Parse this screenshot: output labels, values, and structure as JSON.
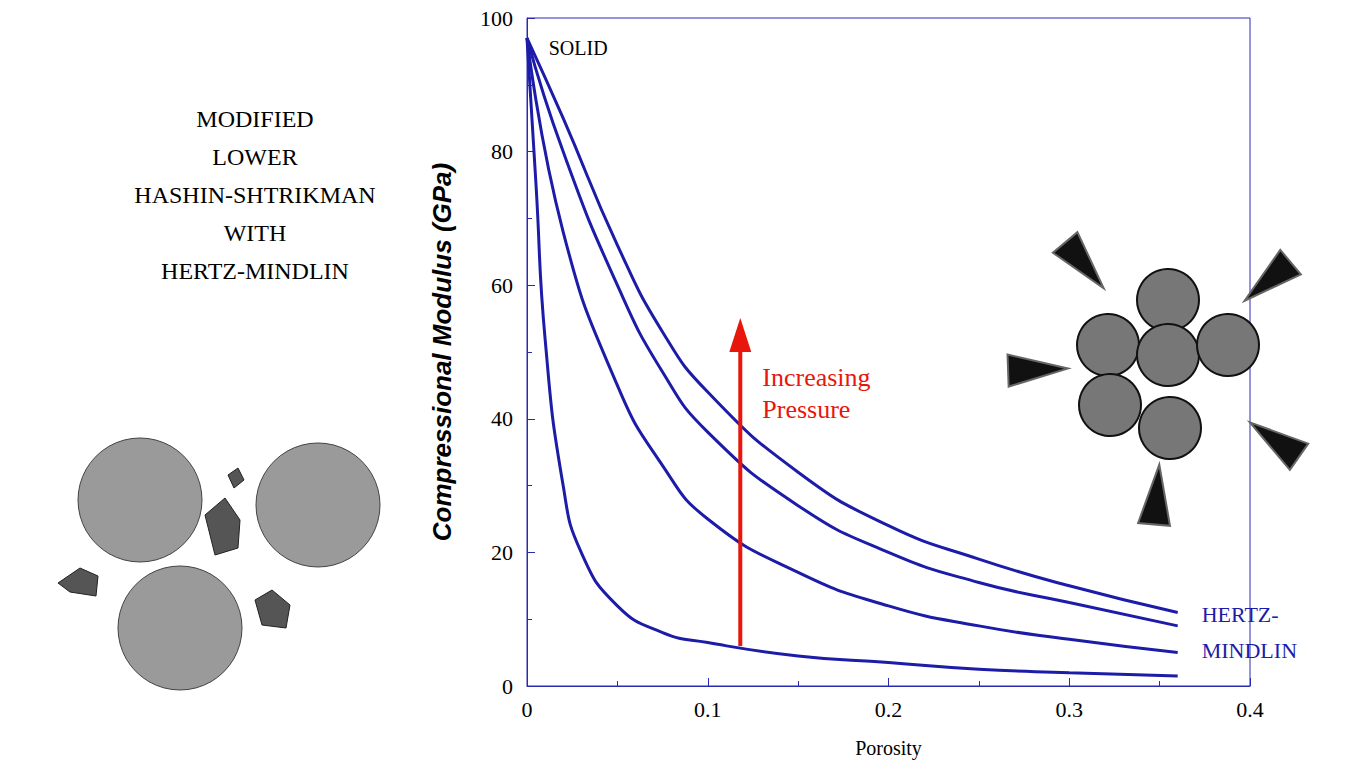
{
  "chart_data": {
    "type": "line",
    "title": "MODIFIED LOWER HASHIN-SHTRIKMAN WITH HERTZ-MINDLIN",
    "x_label": "Porosity",
    "y_label": "Compressional Modulus (GPa)",
    "annotations": [
      {
        "text": "SOLID"
      },
      {
        "text": "Increasing Pressure",
        "color": "#e8160c"
      },
      {
        "text": "HERTZ-MINDLIN",
        "color": "#1c1ca8"
      }
    ],
    "xlim": [
      0,
      0.4
    ],
    "ylim": [
      0,
      100
    ],
    "xticks": [
      0,
      0.1,
      0.2,
      0.3,
      0.4
    ],
    "yticks": [
      0,
      20,
      40,
      60,
      80,
      100
    ],
    "grid": false,
    "color": "#1c1ca8",
    "series": [
      {
        "x": [
          0,
          0.02,
          0.05,
          0.075,
          0.1,
          0.15,
          0.2,
          0.25,
          0.3,
          0.36
        ],
        "values": [
          97,
          85,
          66,
          53,
          44,
          32,
          24,
          19,
          15,
          11
        ]
      },
      {
        "x": [
          0,
          0.02,
          0.05,
          0.075,
          0.1,
          0.15,
          0.2,
          0.25,
          0.3,
          0.36
        ],
        "values": [
          97,
          80,
          60,
          47,
          38,
          27,
          20,
          15.5,
          12.5,
          9
        ]
      },
      {
        "x": [
          0,
          0.02,
          0.05,
          0.075,
          0.1,
          0.15,
          0.2,
          0.25,
          0.3,
          0.36
        ],
        "values": [
          97,
          68,
          45,
          33,
          25,
          17,
          12,
          9,
          7,
          5
        ]
      },
      {
        "x": [
          0,
          0.005,
          0.01,
          0.02,
          0.03,
          0.05,
          0.075,
          0.1,
          0.15,
          0.2,
          0.25,
          0.3,
          0.36
        ],
        "values": [
          97,
          75,
          52,
          30,
          20,
          12,
          8,
          6.5,
          4.5,
          3.5,
          2.5,
          2,
          1.5
        ]
      }
    ]
  }
}
